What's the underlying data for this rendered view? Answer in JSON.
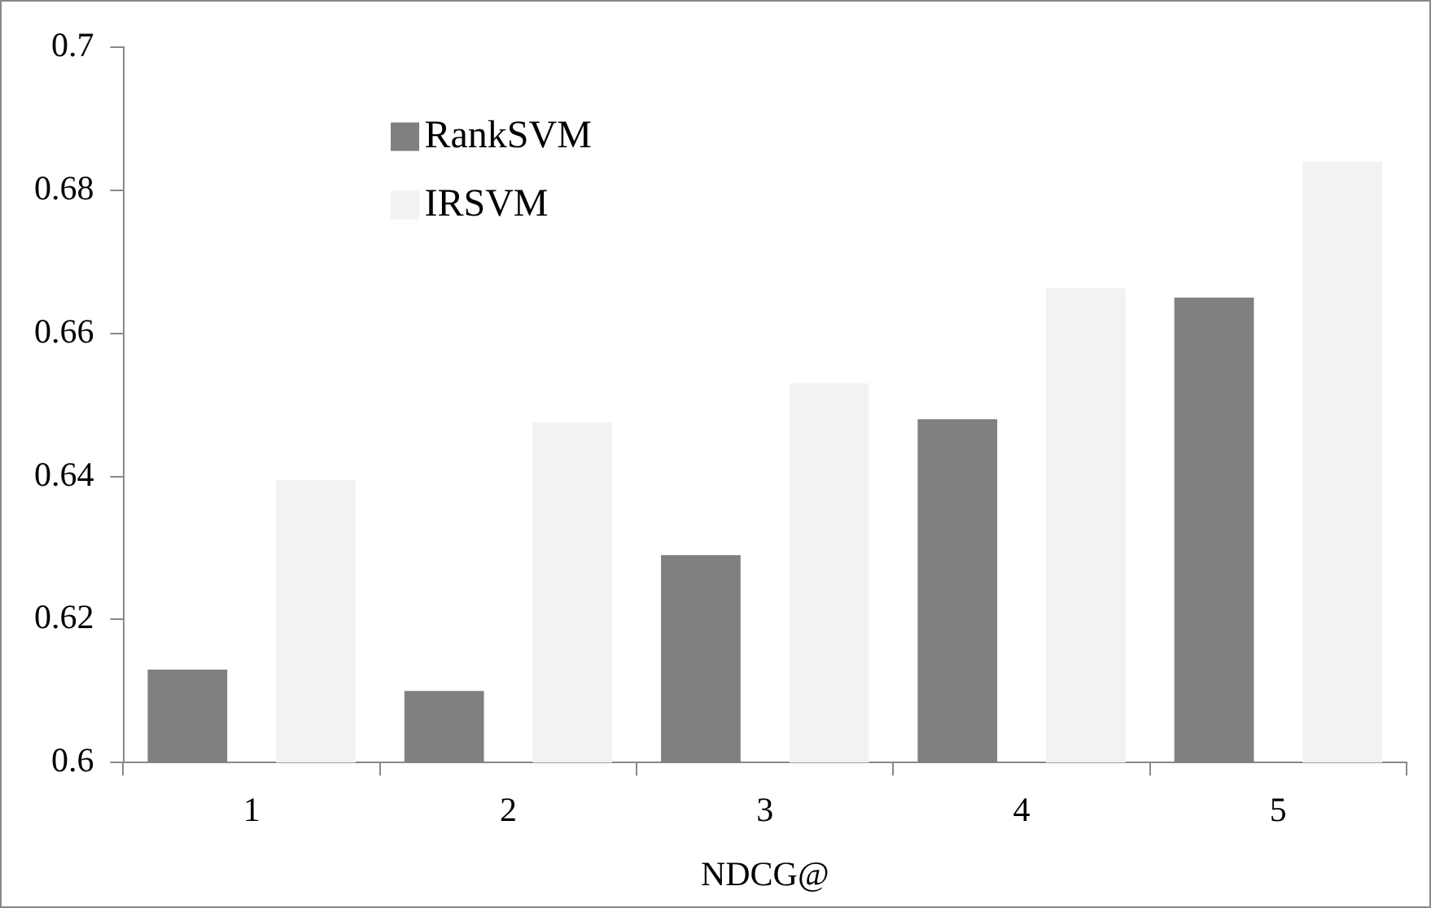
{
  "chart_data": {
    "type": "bar",
    "xlabel": "NDCG@",
    "categories": [
      "1",
      "2",
      "3",
      "4",
      "5"
    ],
    "series": [
      {
        "name": "RankSVM",
        "color": "#808080",
        "values": [
          0.613,
          0.61,
          0.629,
          0.648,
          0.665
        ]
      },
      {
        "name": "IRSVM",
        "color": "#f2f2f2",
        "values": [
          0.6395,
          0.6475,
          0.653,
          0.6663,
          0.684
        ]
      }
    ],
    "ylim": [
      0.6,
      0.7
    ],
    "yticks": [
      0.6,
      0.62,
      0.64,
      0.66,
      0.68,
      0.7
    ],
    "grid": false,
    "legend": "top left"
  }
}
